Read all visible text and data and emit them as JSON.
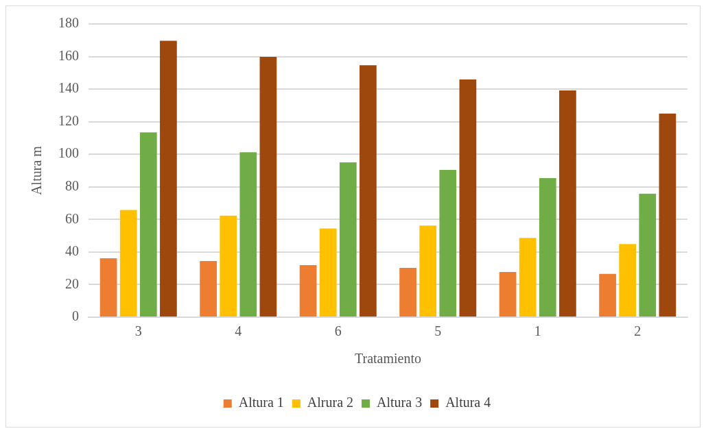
{
  "chart_data": {
    "type": "bar",
    "xlabel": "Tratamiento",
    "ylabel": "Altura m",
    "categories": [
      "3",
      "4",
      "6",
      "5",
      "1",
      "2"
    ],
    "series": [
      {
        "name": "Altura 1",
        "color": "#ed7d31",
        "values": [
          36.2,
          34.5,
          32.0,
          30.3,
          27.8,
          26.6
        ]
      },
      {
        "name": "Alrura 2",
        "color": "#ffc000",
        "values": [
          65.8,
          62.4,
          54.5,
          56.2,
          48.7,
          44.9
        ]
      },
      {
        "name": "Altura 3",
        "color": "#70ad47",
        "values": [
          113.4,
          101.3,
          95.0,
          90.4,
          85.4,
          75.8
        ]
      },
      {
        "name": "Altura 4",
        "color": "#9e480e",
        "values": [
          169.7,
          159.8,
          154.7,
          145.9,
          139.2,
          125.0
        ]
      }
    ],
    "ylim": [
      0,
      180
    ],
    "yticks": [
      0,
      20,
      40,
      60,
      80,
      100,
      120,
      140,
      160,
      180
    ],
    "grid": "y",
    "legend": "bottom"
  }
}
